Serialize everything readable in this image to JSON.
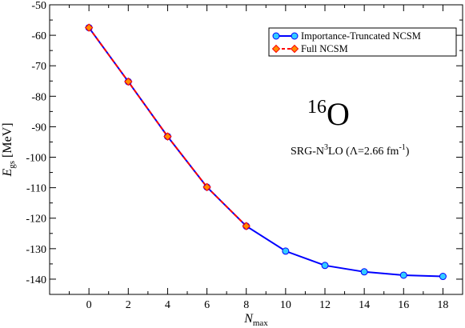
{
  "chart_data": {
    "type": "line",
    "x_axis": {
      "label": "N",
      "label_subscript": "max",
      "range": [
        -2,
        19
      ],
      "ticks": [
        0,
        2,
        4,
        6,
        8,
        10,
        12,
        14,
        16,
        18
      ]
    },
    "y_axis": {
      "label": "E",
      "label_subscript": "gs",
      "label_suffix": " [MeV]",
      "range": [
        -145,
        -50
      ],
      "ticks": [
        -50,
        -60,
        -70,
        -80,
        -90,
        -100,
        -110,
        -120,
        -130,
        -140
      ]
    },
    "series": [
      {
        "name": "Importance-Truncated NCSM",
        "color": "#0000ff",
        "marker_fill": "#33ccff",
        "marker": "circle",
        "x": [
          0,
          2,
          4,
          6,
          8,
          10,
          12,
          14,
          16,
          18
        ],
        "y": [
          -57.5,
          -75.2,
          -93.2,
          -109.8,
          -122.6,
          -130.8,
          -135.5,
          -137.6,
          -138.7,
          -139.1
        ]
      },
      {
        "name": "Full NCSM",
        "color": "#ff0000",
        "marker_fill": "#ff8c00",
        "marker": "diamond",
        "dashed": true,
        "x": [
          0,
          2,
          4,
          6,
          8
        ],
        "y": [
          -57.5,
          -75.2,
          -93.2,
          -109.8,
          -122.6
        ]
      }
    ],
    "legend_position": "top-right",
    "annotations": {
      "nucleus_mass": "16",
      "nucleus_symbol": "O",
      "interaction_prefix": "SRG-N",
      "interaction_power": "3",
      "interaction_suffix": "LO (Λ=2.66 fm",
      "interaction_unit_power": "-1",
      "interaction_close": ")"
    }
  }
}
